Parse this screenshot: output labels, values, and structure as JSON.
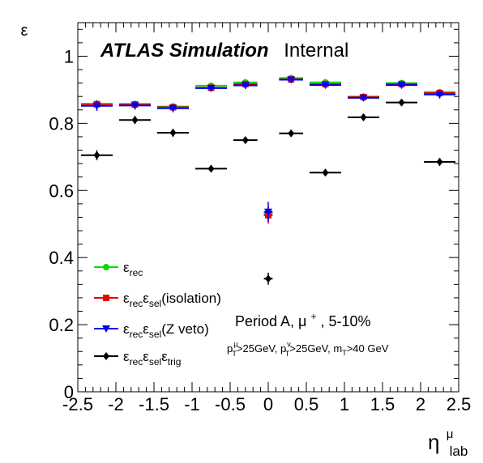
{
  "chart_data": {
    "type": "scatter",
    "title": "",
    "ylabel": "ε",
    "xlabel_base": "η",
    "xlabel_sup": "μ",
    "xlabel_sub": "lab",
    "xlim": [
      -2.5,
      2.5
    ],
    "ylim": [
      0,
      1.1
    ],
    "x_ticks": [
      -2.5,
      -2,
      -1.5,
      -1,
      -0.5,
      0,
      0.5,
      1,
      1.5,
      2,
      2.5
    ],
    "x_tick_labels": [
      "-2.5",
      "-2",
      "-1.5",
      "-1",
      "-0.5",
      "0",
      "0.5",
      "1",
      "1.5",
      "2",
      "2.5"
    ],
    "y_ticks": [
      0,
      0.2,
      0.4,
      0.6,
      0.8,
      1
    ],
    "y_tick_labels": [
      "0",
      "0.2",
      "0.4",
      "0.6",
      "0.8",
      "1"
    ],
    "grid": false,
    "legend_position": "bottom-left",
    "bin_edges": [
      -2.5,
      -2.0,
      -1.5,
      -1.0,
      -0.5,
      -0.1,
      0.1,
      0.5,
      1.0,
      1.5,
      2.0,
      2.5
    ],
    "series": [
      {
        "name": "ε_rec",
        "color": "#00dd00",
        "marker": "circle",
        "values": [
          0.858,
          0.858,
          0.85,
          0.912,
          0.922,
          0.53,
          0.935,
          0.922,
          0.88,
          0.92,
          0.893
        ],
        "errors": [
          0.01,
          0.008,
          0.008,
          0.006,
          0.006,
          0.02,
          0.005,
          0.006,
          0.006,
          0.006,
          0.008
        ]
      },
      {
        "name": "ε_rec ε_sel (isolation)",
        "color": "#ee0000",
        "marker": "square",
        "values": [
          0.857,
          0.856,
          0.848,
          0.906,
          0.917,
          0.526,
          0.931,
          0.917,
          0.878,
          0.917,
          0.89
        ],
        "errors": [
          0.012,
          0.01,
          0.01,
          0.008,
          0.008,
          0.025,
          0.006,
          0.008,
          0.008,
          0.008,
          0.01
        ]
      },
      {
        "name": "ε_rec ε_sel (Z veto)",
        "color": "#0000ee",
        "marker": "triangle-down",
        "values": [
          0.852,
          0.853,
          0.845,
          0.905,
          0.913,
          0.536,
          0.93,
          0.914,
          0.876,
          0.914,
          0.886
        ],
        "errors": [
          0.015,
          0.012,
          0.012,
          0.01,
          0.01,
          0.03,
          0.008,
          0.01,
          0.01,
          0.01,
          0.012
        ]
      },
      {
        "name": "ε_rec ε_sel ε_trig",
        "color": "#000000",
        "marker": "diamond",
        "values": [
          0.705,
          0.81,
          0.772,
          0.665,
          0.75,
          0.337,
          0.77,
          0.653,
          0.818,
          0.862,
          0.685
        ],
        "errors": [
          0.015,
          0.012,
          0.012,
          0.01,
          0.01,
          0.018,
          0.01,
          0.01,
          0.01,
          0.01,
          0.012
        ]
      }
    ],
    "legend": [
      {
        "series": 0,
        "main": "ε",
        "sub1": "rec",
        "mid": "",
        "sub2": "",
        "mid2": "",
        "sub3": "",
        "tail": ""
      },
      {
        "series": 1,
        "main": "ε",
        "sub1": "rec",
        "mid": "ε",
        "sub2": "sel",
        "mid2": "",
        "sub3": "",
        "tail": "(isolation)"
      },
      {
        "series": 2,
        "main": "ε",
        "sub1": "rec",
        "mid": "ε",
        "sub2": "sel",
        "mid2": "",
        "sub3": "",
        "tail": "(Z veto)"
      },
      {
        "series": 3,
        "main": "ε",
        "sub1": "rec",
        "mid": "ε",
        "sub2": "sel",
        "mid2": "ε",
        "sub3": "trig",
        "tail": ""
      }
    ],
    "annotations": {
      "atlas_bold": "ATLAS Simulation",
      "atlas_plain": "Internal",
      "period_pre": "Period A, μ",
      "period_sup": "+",
      "period_post": ", 5-10%",
      "cuts": [
        {
          "p": "p",
          "sup": "μ",
          "sub": "T",
          "tail": ">25GeV, "
        },
        {
          "p": "p",
          "sup": "ν",
          "sub": "T",
          "tail": ">25GeV, "
        },
        {
          "p": "m",
          "sup": "",
          "sub": "T",
          "tail": ">40 GeV"
        }
      ]
    }
  }
}
